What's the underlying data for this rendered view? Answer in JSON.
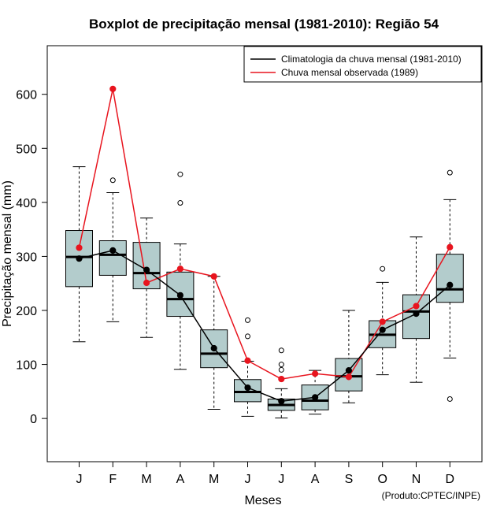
{
  "chart_data": {
    "type": "boxplot",
    "title": "Boxplot de precipitação mensal (1981-2010): Região 54",
    "xlabel": "Meses",
    "ylabel": "Precipitação mensal (mm)",
    "ylim": [
      -80,
      690
    ],
    "yticks": [
      0,
      100,
      200,
      300,
      400,
      500,
      600
    ],
    "categories": [
      "J",
      "F",
      "M",
      "A",
      "M",
      "J",
      "J",
      "A",
      "S",
      "O",
      "N",
      "D"
    ],
    "boxes": [
      {
        "min": 142,
        "q1": 244,
        "median": 299,
        "q3": 348,
        "max": 466,
        "outliers": []
      },
      {
        "min": 179,
        "q1": 265,
        "median": 303,
        "q3": 329,
        "max": 418,
        "outliers": [
          441
        ]
      },
      {
        "min": 150,
        "q1": 240,
        "median": 269,
        "q3": 326,
        "max": 371,
        "outliers": []
      },
      {
        "min": 91,
        "q1": 189,
        "median": 221,
        "q3": 271,
        "max": 323,
        "outliers": [
          399,
          452
        ]
      },
      {
        "min": 17,
        "q1": 94,
        "median": 120,
        "q3": 164,
        "max": 263,
        "outliers": []
      },
      {
        "min": 4,
        "q1": 31,
        "median": 49,
        "q3": 72,
        "max": 106,
        "outliers": [
          152,
          182
        ]
      },
      {
        "min": 1,
        "q1": 15,
        "median": 25,
        "q3": 36,
        "max": 55,
        "outliers": [
          90,
          100,
          126
        ]
      },
      {
        "min": 8,
        "q1": 16,
        "median": 33,
        "q3": 62,
        "max": 89,
        "outliers": []
      },
      {
        "min": 29,
        "q1": 51,
        "median": 78,
        "q3": 111,
        "max": 200,
        "outliers": []
      },
      {
        "min": 81,
        "q1": 131,
        "median": 155,
        "q3": 181,
        "max": 252,
        "outliers": [
          277
        ]
      },
      {
        "min": 67,
        "q1": 148,
        "median": 198,
        "q3": 229,
        "max": 336,
        "outliers": []
      },
      {
        "min": 112,
        "q1": 215,
        "median": 239,
        "q3": 304,
        "max": 405,
        "outliers": [
          455,
          36
        ]
      }
    ],
    "series": [
      {
        "name": "Climatologia da chuva mensal (1981-2010)",
        "color": "#000000",
        "values": [
          296,
          311,
          275,
          228,
          130,
          57,
          32,
          39,
          89,
          164,
          194,
          247
        ]
      },
      {
        "name": "Chuva mensal observada (1989)",
        "color": "#e8141e",
        "values": [
          316,
          610,
          251,
          277,
          263,
          107,
          73,
          83,
          77,
          179,
          208,
          317
        ]
      }
    ],
    "box_fill": "#b3cccc",
    "legend_position": "top-right",
    "credit": "(Produto:CPTEC/INPE)"
  }
}
